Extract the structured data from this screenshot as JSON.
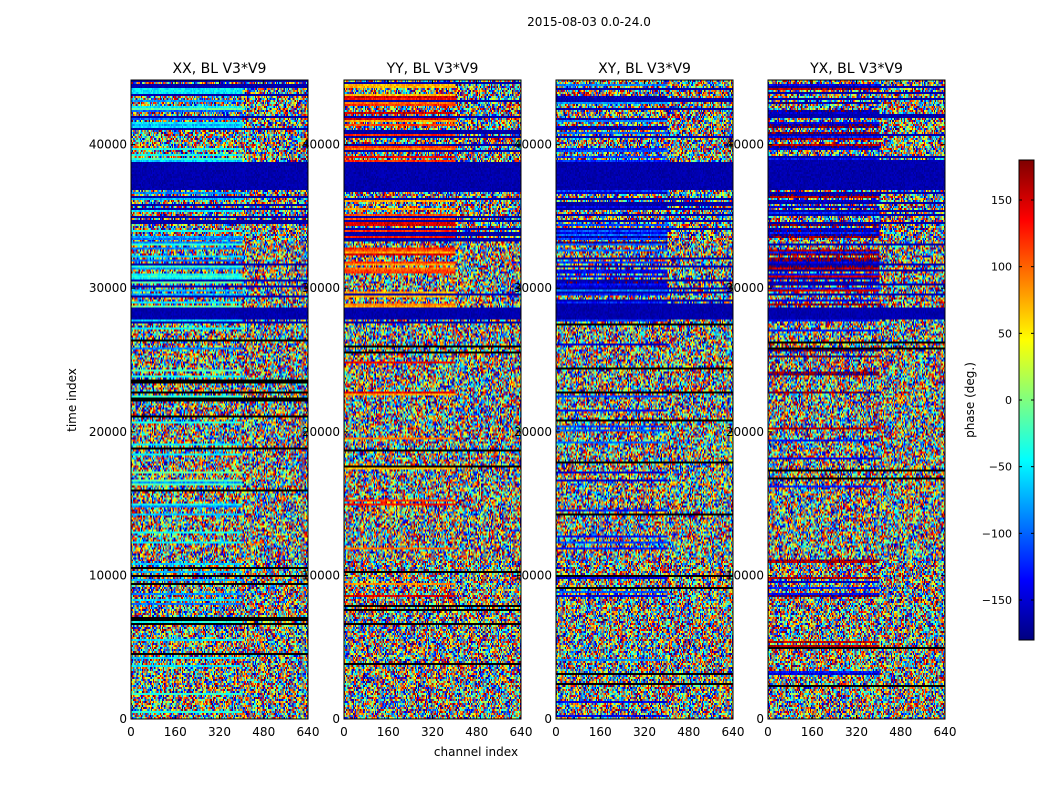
{
  "chart_data": {
    "type": "heatmap",
    "suptitle": "2015-08-03 0.0-24.0",
    "xlabel": "channel index",
    "ylabel": "time index",
    "xlim": [
      0,
      640
    ],
    "ylim": [
      0,
      44500
    ],
    "xticks": [
      0,
      160,
      320,
      480,
      640
    ],
    "yticks": [
      0,
      10000,
      20000,
      30000,
      40000
    ],
    "panels": [
      {
        "title": "XX, BL V3*V9"
      },
      {
        "title": "YY, BL V3*V9"
      },
      {
        "title": "XY, BL V3*V9"
      },
      {
        "title": "YX, BL V3*V9"
      }
    ],
    "colorbar": {
      "label": "phase (deg.)",
      "colormap": "jet",
      "range": [
        -180,
        180
      ],
      "ticks": [
        150,
        100,
        50,
        0,
        -50,
        -100,
        -150
      ],
      "tick_labels": [
        "150",
        "100",
        "50",
        "0",
        "−50",
        "−100",
        "−150"
      ]
    }
  }
}
